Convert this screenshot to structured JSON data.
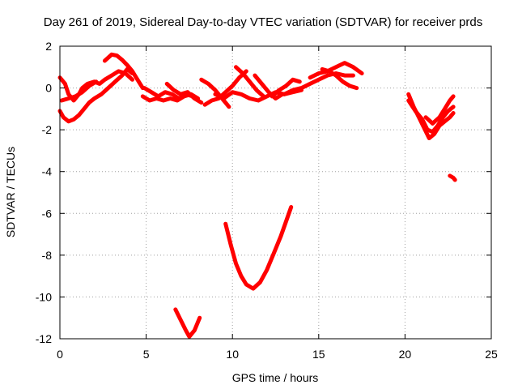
{
  "chart_data": {
    "type": "scatter",
    "title": "Day 261 of 2019, Sidereal Day-to-day VTEC variation (SDTVAR) for receiver prds",
    "xlabel": "GPS time / hours",
    "ylabel": "SDTVAR / TECUs",
    "xlim": [
      0,
      25
    ],
    "ylim": [
      -12,
      2
    ],
    "x_ticks": [
      0,
      5,
      10,
      15,
      20,
      25
    ],
    "y_ticks": [
      -12,
      -10,
      -8,
      -6,
      -4,
      -2,
      0,
      2
    ],
    "x_tick_labels": [
      "0",
      "5",
      "10",
      "15",
      "20",
      "25"
    ],
    "y_tick_labels": [
      "-12",
      "-10",
      "-8",
      "-6",
      "-4",
      "-2",
      "0",
      "2"
    ],
    "grid": true,
    "marker": "plus",
    "color": "#ff0000",
    "series": [
      {
        "points": [
          [
            0,
            -1.1
          ],
          [
            0.2,
            -1.4
          ],
          [
            0.5,
            -1.6
          ],
          [
            0.8,
            -1.5
          ],
          [
            1.1,
            -1.3
          ],
          [
            1.4,
            -1.0
          ],
          [
            1.7,
            -0.7
          ],
          [
            2.0,
            -0.5
          ],
          [
            2.4,
            -0.3
          ],
          [
            2.8,
            0.0
          ],
          [
            3.2,
            0.3
          ],
          [
            3.6,
            0.6
          ],
          [
            3.9,
            0.9
          ],
          [
            4.2,
            0.7
          ]
        ]
      },
      {
        "points": [
          [
            0,
            0.5
          ],
          [
            0.3,
            0.2
          ],
          [
            0.5,
            -0.3
          ],
          [
            0.8,
            -0.6
          ],
          [
            1.1,
            -0.3
          ],
          [
            1.3,
            0.0
          ],
          [
            1.6,
            0.2
          ],
          [
            2.0,
            0.3
          ],
          [
            2.3,
            0.2
          ],
          [
            2.6,
            0.4
          ],
          [
            3.0,
            0.6
          ],
          [
            3.4,
            0.8
          ],
          [
            3.8,
            0.7
          ],
          [
            4.2,
            0.4
          ]
        ]
      },
      {
        "points": [
          [
            0.1,
            -0.6
          ],
          [
            0.5,
            -0.5
          ],
          [
            0.9,
            -0.4
          ],
          [
            1.3,
            -0.2
          ],
          [
            1.7,
            0.1
          ],
          [
            2.1,
            0.3
          ]
        ]
      },
      {
        "points": [
          [
            2.6,
            1.3
          ],
          [
            3.0,
            1.6
          ],
          [
            3.3,
            1.55
          ],
          [
            3.6,
            1.35
          ],
          [
            3.9,
            1.1
          ],
          [
            4.2,
            0.8
          ],
          [
            4.5,
            0.4
          ],
          [
            4.8,
            0.0
          ]
        ]
      },
      {
        "points": [
          [
            4.8,
            -0.4
          ],
          [
            5.2,
            -0.6
          ],
          [
            5.6,
            -0.5
          ],
          [
            6.0,
            -0.6
          ],
          [
            6.4,
            -0.5
          ],
          [
            6.8,
            -0.6
          ],
          [
            7.2,
            -0.4
          ],
          [
            7.6,
            -0.3
          ],
          [
            8.0,
            -0.5
          ]
        ]
      },
      {
        "points": [
          [
            4.9,
            0.0
          ],
          [
            5.3,
            -0.2
          ],
          [
            5.7,
            -0.4
          ],
          [
            6.1,
            -0.2
          ],
          [
            6.5,
            -0.3
          ],
          [
            6.9,
            -0.5
          ],
          [
            7.3,
            -0.3
          ],
          [
            7.7,
            -0.4
          ]
        ]
      },
      {
        "points": [
          [
            6.2,
            0.2
          ],
          [
            6.6,
            -0.1
          ],
          [
            7.0,
            -0.3
          ],
          [
            7.4,
            -0.2
          ],
          [
            7.8,
            -0.5
          ],
          [
            8.2,
            -0.7
          ]
        ]
      },
      {
        "points": [
          [
            8.2,
            0.4
          ],
          [
            8.6,
            0.2
          ],
          [
            9.0,
            -0.1
          ],
          [
            9.4,
            -0.5
          ],
          [
            9.8,
            -0.9
          ]
        ]
      },
      {
        "points": [
          [
            8.4,
            -0.8
          ],
          [
            8.8,
            -0.6
          ],
          [
            9.2,
            -0.5
          ],
          [
            9.6,
            -0.2
          ],
          [
            10.0,
            0.1
          ],
          [
            10.4,
            0.5
          ],
          [
            10.8,
            0.8
          ]
        ]
      },
      {
        "points": [
          [
            9.0,
            -0.3
          ],
          [
            9.5,
            -0.5
          ],
          [
            10.0,
            -0.2
          ],
          [
            10.5,
            -0.3
          ],
          [
            11.0,
            -0.5
          ],
          [
            11.5,
            -0.6
          ],
          [
            12.0,
            -0.4
          ],
          [
            12.5,
            -0.2
          ],
          [
            13.0,
            -0.3
          ],
          [
            13.5,
            -0.2
          ],
          [
            14.0,
            -0.1
          ]
        ]
      },
      {
        "points": [
          [
            10.2,
            1.0
          ],
          [
            10.6,
            0.7
          ],
          [
            11.0,
            0.3
          ],
          [
            11.4,
            -0.1
          ],
          [
            11.8,
            -0.4
          ]
        ]
      },
      {
        "points": [
          [
            11.3,
            0.6
          ],
          [
            11.7,
            0.2
          ],
          [
            12.1,
            -0.2
          ],
          [
            12.5,
            -0.5
          ],
          [
            12.9,
            -0.3
          ]
        ]
      },
      {
        "points": [
          [
            12.3,
            -0.4
          ],
          [
            12.7,
            -0.1
          ],
          [
            13.1,
            0.1
          ],
          [
            13.5,
            0.4
          ],
          [
            13.9,
            0.3
          ]
        ]
      },
      {
        "points": [
          [
            13.0,
            -0.3
          ],
          [
            13.5,
            -0.1
          ],
          [
            14.0,
            0.0
          ],
          [
            14.5,
            0.2
          ],
          [
            15.0,
            0.4
          ],
          [
            15.5,
            0.6
          ],
          [
            16.0,
            0.7
          ],
          [
            16.5,
            0.6
          ],
          [
            17.0,
            0.6
          ]
        ]
      },
      {
        "points": [
          [
            14.5,
            0.5
          ],
          [
            15.0,
            0.7
          ],
          [
            15.5,
            0.8
          ],
          [
            16.0,
            1.0
          ],
          [
            16.5,
            1.2
          ],
          [
            17.0,
            1.0
          ],
          [
            17.5,
            0.7
          ]
        ]
      },
      {
        "points": [
          [
            15.2,
            0.9
          ],
          [
            15.6,
            0.8
          ],
          [
            16.0,
            0.6
          ],
          [
            16.4,
            0.3
          ],
          [
            16.8,
            0.1
          ],
          [
            17.2,
            0.0
          ]
        ]
      },
      {
        "points": [
          [
            20.2,
            -0.3
          ],
          [
            20.5,
            -0.9
          ],
          [
            20.8,
            -1.4
          ],
          [
            21.1,
            -1.9
          ],
          [
            21.4,
            -2.4
          ],
          [
            21.7,
            -2.2
          ],
          [
            22.0,
            -1.8
          ],
          [
            22.3,
            -1.6
          ],
          [
            22.6,
            -1.4
          ],
          [
            22.8,
            -1.2
          ]
        ]
      },
      {
        "points": [
          [
            20.2,
            -0.6
          ],
          [
            20.6,
            -1.1
          ],
          [
            21.0,
            -1.5
          ],
          [
            21.3,
            -2.0
          ],
          [
            21.6,
            -2.1
          ],
          [
            21.9,
            -1.8
          ],
          [
            22.2,
            -1.4
          ],
          [
            22.5,
            -1.1
          ],
          [
            22.8,
            -0.9
          ]
        ]
      },
      {
        "points": [
          [
            21.2,
            -1.4
          ],
          [
            21.6,
            -1.7
          ],
          [
            22.0,
            -1.4
          ],
          [
            22.3,
            -1.0
          ],
          [
            22.6,
            -0.6
          ],
          [
            22.8,
            -0.4
          ]
        ]
      },
      {
        "points": [
          [
            22.6,
            -4.2
          ],
          [
            22.8,
            -4.3
          ],
          [
            22.9,
            -4.4
          ]
        ]
      },
      {
        "points": [
          [
            6.7,
            -10.6
          ],
          [
            7.0,
            -11.1
          ],
          [
            7.3,
            -11.6
          ],
          [
            7.5,
            -11.9
          ],
          [
            7.8,
            -11.6
          ],
          [
            8.1,
            -11.0
          ]
        ]
      },
      {
        "points": [
          [
            9.6,
            -6.5
          ],
          [
            9.9,
            -7.5
          ],
          [
            10.2,
            -8.4
          ],
          [
            10.5,
            -9.0
          ],
          [
            10.8,
            -9.4
          ],
          [
            11.2,
            -9.6
          ],
          [
            11.6,
            -9.3
          ],
          [
            12.0,
            -8.7
          ],
          [
            12.4,
            -7.9
          ],
          [
            12.8,
            -7.1
          ],
          [
            13.1,
            -6.4
          ],
          [
            13.4,
            -5.7
          ]
        ]
      }
    ]
  }
}
